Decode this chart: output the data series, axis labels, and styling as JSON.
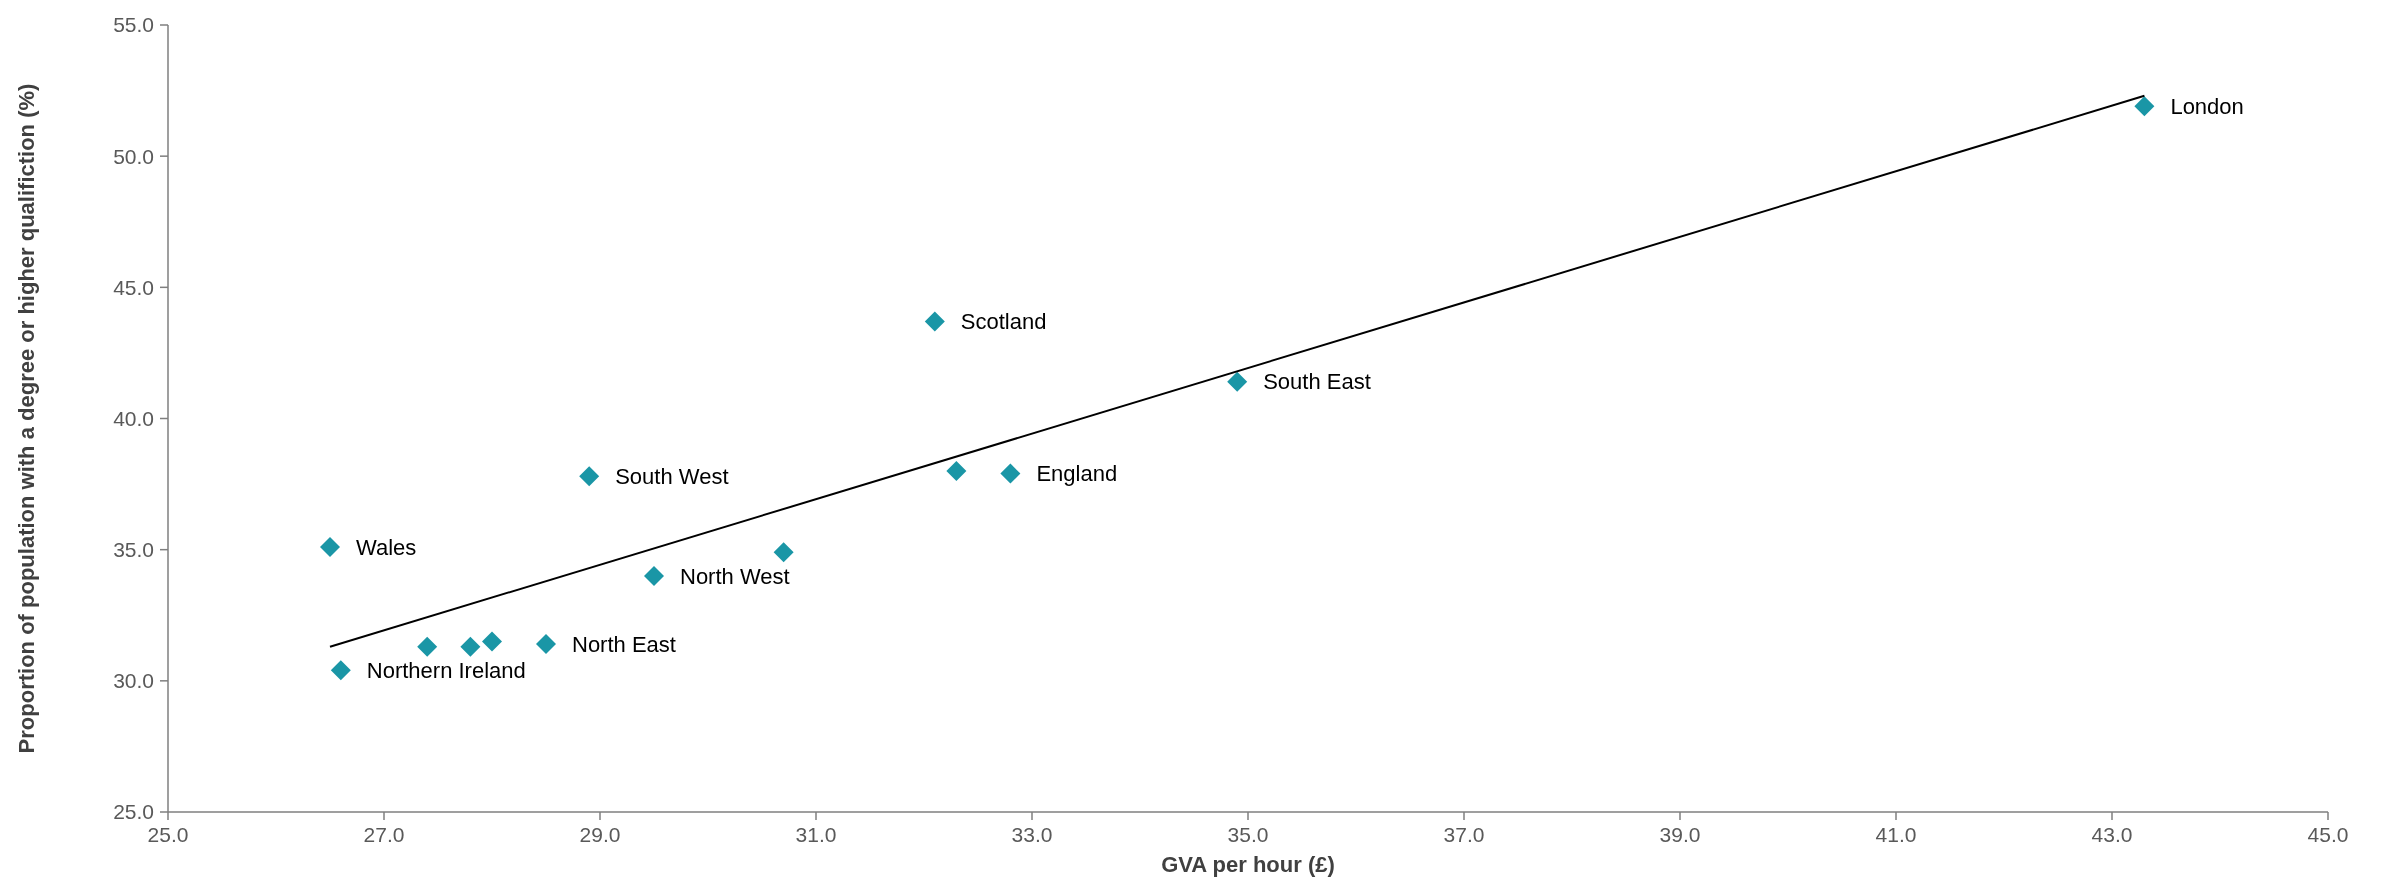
{
  "chart_data": {
    "type": "scatter",
    "xlabel": "GVA per hour (£)",
    "ylabel": "Proportion of population with a degree or higher qualifiction (%)",
    "xlim": [
      25,
      45
    ],
    "ylim": [
      25,
      55
    ],
    "xticks": [
      {
        "value": 25,
        "label": "25.0"
      },
      {
        "value": 27,
        "label": "27.0"
      },
      {
        "value": 29,
        "label": "29.0"
      },
      {
        "value": 31,
        "label": "31.0"
      },
      {
        "value": 33,
        "label": "33.0"
      },
      {
        "value": 35,
        "label": "35.0"
      },
      {
        "value": 37,
        "label": "37.0"
      },
      {
        "value": 39,
        "label": "39.0"
      },
      {
        "value": 41,
        "label": "41.0"
      },
      {
        "value": 43,
        "label": "43.0"
      },
      {
        "value": 45,
        "label": "45.0"
      }
    ],
    "yticks": [
      {
        "value": 25,
        "label": "25.0"
      },
      {
        "value": 30,
        "label": "30.0"
      },
      {
        "value": 35,
        "label": "35.0"
      },
      {
        "value": 40,
        "label": "40.0"
      },
      {
        "value": 45,
        "label": "45.0"
      },
      {
        "value": 50,
        "label": "50.0"
      },
      {
        "value": 55,
        "label": "55.0"
      }
    ],
    "grid": false,
    "series": [
      {
        "marker": "diamond",
        "color": "#1a96a6",
        "x": [
          43.3,
          32.1,
          34.9,
          28.9,
          32.8,
          32.3,
          26.5,
          30.7,
          29.5,
          28.5,
          28.0,
          27.8,
          27.4,
          26.6
        ],
        "values": [
          51.9,
          43.7,
          41.4,
          37.8,
          37.9,
          38.0,
          35.1,
          34.9,
          34.0,
          31.4,
          31.5,
          31.3,
          31.3,
          30.4
        ]
      },
      {
        "type": "line",
        "color": "#000000",
        "x": [
          26.5,
          43.3
        ],
        "values": [
          31.3,
          52.3
        ]
      }
    ],
    "annotations": [
      {
        "text": "London",
        "x": 43.3,
        "y": 51.9
      },
      {
        "text": "Scotland",
        "x": 32.1,
        "y": 43.7
      },
      {
        "text": "South East",
        "x": 34.9,
        "y": 41.4
      },
      {
        "text": "South West",
        "x": 28.9,
        "y": 37.8
      },
      {
        "text": "England",
        "x": 32.8,
        "y": 37.9
      },
      {
        "text": "Wales",
        "x": 26.5,
        "y": 35.1
      },
      {
        "text": "North West",
        "x": 29.5,
        "y": 34.0
      },
      {
        "text": "North East",
        "x": 28.5,
        "y": 31.4
      },
      {
        "text": "Northern Ireland",
        "x": 26.6,
        "y": 30.4
      }
    ]
  }
}
